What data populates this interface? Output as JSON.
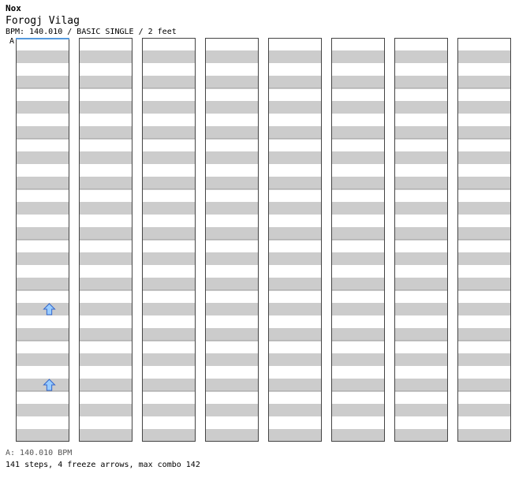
{
  "header": {
    "artist": "Nox",
    "title": "Forogj Vilag",
    "info": "BPM: 140.010 / BASIC SINGLE / 2 feet",
    "bpm_marker": "A"
  },
  "footer": {
    "bpm_line": "A: 140.010 BPM",
    "stats_line": "141 steps, 4 freeze arrows, max combo 142"
  },
  "colors": {
    "note": "#ffd6d6",
    "note_stroke": "#d44444",
    "note_alt": "#99ccff",
    "note_alt_stroke": "#3366cc",
    "freeze": "#ccffcc",
    "freeze_stroke": "#339933",
    "stripe": "#cccccc"
  },
  "chart_data": {
    "type": "step-chart",
    "columns": 8,
    "beats_per_column": 32,
    "lanes": [
      "left",
      "down",
      "up",
      "right"
    ],
    "notes": [
      [
        0,
        21,
        2,
        "blue"
      ],
      [
        0,
        27,
        2,
        "blue"
      ]
    ]
  }
}
